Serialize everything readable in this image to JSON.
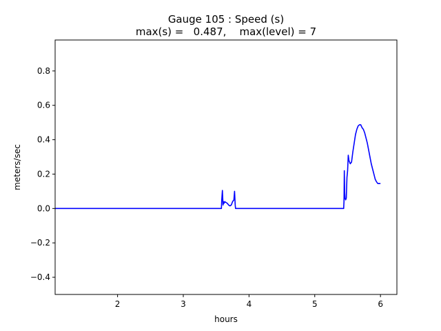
{
  "chart_data": {
    "type": "line",
    "title": "Gauge 105 : Speed (s)",
    "subtitle": "max(s) =   0.487,    max(level) = 7",
    "xlabel": "hours",
    "ylabel": "meters/sec",
    "xlim": [
      1.05,
      6.25
    ],
    "ylim": [
      -0.5,
      0.98
    ],
    "xticks": [
      2,
      3,
      4,
      5,
      6
    ],
    "yticks": [
      -0.4,
      -0.2,
      0.0,
      0.2,
      0.4,
      0.6,
      0.8
    ],
    "ytick_labels": [
      "−0.4",
      "−0.2",
      "0.0",
      "0.2",
      "0.4",
      "0.6",
      "0.8"
    ],
    "grid": false,
    "series": [
      {
        "color": "#0000ff",
        "x": [
          1.05,
          3.58,
          3.585,
          3.595,
          3.6,
          3.605,
          3.61,
          3.62,
          3.63,
          3.65,
          3.67,
          3.69,
          3.71,
          3.73,
          3.75,
          3.77,
          3.78,
          3.79,
          3.795,
          3.8,
          5.44,
          5.445,
          5.45,
          5.455,
          5.46,
          5.47,
          5.48,
          5.49,
          5.5,
          5.51,
          5.52,
          5.54,
          5.56,
          5.58,
          5.6,
          5.62,
          5.64,
          5.66,
          5.68,
          5.7,
          5.72,
          5.74,
          5.76,
          5.78,
          5.8,
          5.82,
          5.84,
          5.86,
          5.88,
          5.9,
          5.92,
          5.94,
          5.96,
          5.98,
          6.0
        ],
        "y": [
          0.0,
          0.0,
          0.05,
          0.105,
          0.06,
          0.02,
          0.04,
          0.03,
          0.04,
          0.035,
          0.03,
          0.02,
          0.015,
          0.02,
          0.04,
          0.05,
          0.1,
          0.02,
          0.0,
          0.0,
          0.0,
          0.04,
          0.22,
          0.1,
          0.06,
          0.05,
          0.06,
          0.18,
          0.22,
          0.31,
          0.28,
          0.26,
          0.27,
          0.33,
          0.38,
          0.43,
          0.46,
          0.48,
          0.487,
          0.487,
          0.47,
          0.46,
          0.44,
          0.41,
          0.38,
          0.34,
          0.3,
          0.26,
          0.23,
          0.2,
          0.17,
          0.155,
          0.145,
          0.145,
          0.145
        ]
      }
    ]
  }
}
